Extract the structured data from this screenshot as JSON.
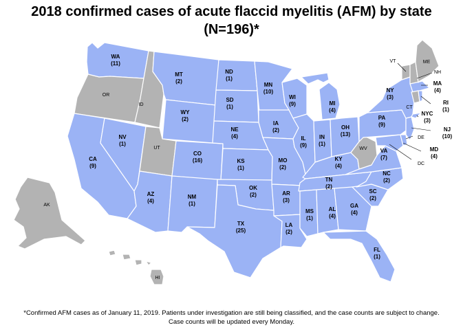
{
  "title_line1": "2018 confirmed cases of acute flaccid myelitis (AFM) by state",
  "title_line2": "(N=196)*",
  "colors": {
    "with_cases": "#9bb3f5",
    "no_cases": "#b3b3b3",
    "border": "#ffffff"
  },
  "states": {
    "WA": {
      "abbr": "WA",
      "cases": "(11)"
    },
    "OR": {
      "abbr": "OR"
    },
    "ID": {
      "abbr": "ID"
    },
    "MT": {
      "abbr": "MT",
      "cases": "(2)"
    },
    "WY": {
      "abbr": "WY",
      "cases": "(2)"
    },
    "NV": {
      "abbr": "NV",
      "cases": "(1)"
    },
    "UT": {
      "abbr": "UT"
    },
    "CA": {
      "abbr": "CA",
      "cases": "(9)"
    },
    "AZ": {
      "abbr": "AZ",
      "cases": "(4)"
    },
    "CO": {
      "abbr": "CO",
      "cases": "(16)"
    },
    "NM": {
      "abbr": "NM",
      "cases": "(1)"
    },
    "ND": {
      "abbr": "ND",
      "cases": "(1)"
    },
    "SD": {
      "abbr": "SD",
      "cases": "(1)"
    },
    "NE": {
      "abbr": "NE",
      "cases": "(4)"
    },
    "KS": {
      "abbr": "KS",
      "cases": "(1)"
    },
    "OK": {
      "abbr": "OK",
      "cases": "(2)"
    },
    "TX": {
      "abbr": "TX",
      "cases": "(25)"
    },
    "MN": {
      "abbr": "MN",
      "cases": "(10)"
    },
    "IA": {
      "abbr": "IA",
      "cases": "(2)"
    },
    "MO": {
      "abbr": "MO",
      "cases": "(2)"
    },
    "AR": {
      "abbr": "AR",
      "cases": "(3)"
    },
    "LA": {
      "abbr": "LA",
      "cases": "(2)"
    },
    "WI": {
      "abbr": "WI",
      "cases": "(9)"
    },
    "IL": {
      "abbr": "IL",
      "cases": "(9)"
    },
    "MI": {
      "abbr": "MI",
      "cases": "(4)"
    },
    "IN": {
      "abbr": "IN",
      "cases": "(1)"
    },
    "OH": {
      "abbr": "OH",
      "cases": "(13)"
    },
    "KY": {
      "abbr": "KY",
      "cases": "(4)"
    },
    "TN": {
      "abbr": "TN",
      "cases": "(2)"
    },
    "MS": {
      "abbr": "MS",
      "cases": "(1)"
    },
    "AL": {
      "abbr": "AL",
      "cases": "(4)"
    },
    "GA": {
      "abbr": "GA",
      "cases": "(4)"
    },
    "FL": {
      "abbr": "FL",
      "cases": "(1)"
    },
    "SC": {
      "abbr": "SC",
      "cases": "(2)"
    },
    "NC": {
      "abbr": "NC",
      "cases": "(2)"
    },
    "VA": {
      "abbr": "VA",
      "cases": "(7)"
    },
    "WV": {
      "abbr": "WV"
    },
    "PA": {
      "abbr": "PA",
      "cases": "(9)"
    },
    "NY": {
      "abbr": "NY",
      "cases": "(3)"
    },
    "NYC": {
      "abbr": "NYC",
      "cases": "(3)"
    },
    "NJ": {
      "abbr": "NJ",
      "cases": "(10)"
    },
    "DE": {
      "abbr": "DE"
    },
    "MD": {
      "abbr": "MD",
      "cases": "(4)"
    },
    "DC": {
      "abbr": "DC"
    },
    "CT": {
      "abbr": "CT"
    },
    "RI": {
      "abbr": "RI",
      "cases": "(1)"
    },
    "MA": {
      "abbr": "MA",
      "cases": "(4)"
    },
    "VT": {
      "abbr": "VT"
    },
    "NH": {
      "abbr": "NH"
    },
    "ME": {
      "abbr": "ME"
    },
    "AK": {
      "abbr": "AK"
    },
    "HI": {
      "abbr": "HI"
    }
  },
  "footnote_line1": "*Confirmed AFM cases as of January 11, 2019. Patients under investigation are still being classified, and the case counts are subject to change.",
  "footnote_line2": "Case counts will be updated every Monday."
}
